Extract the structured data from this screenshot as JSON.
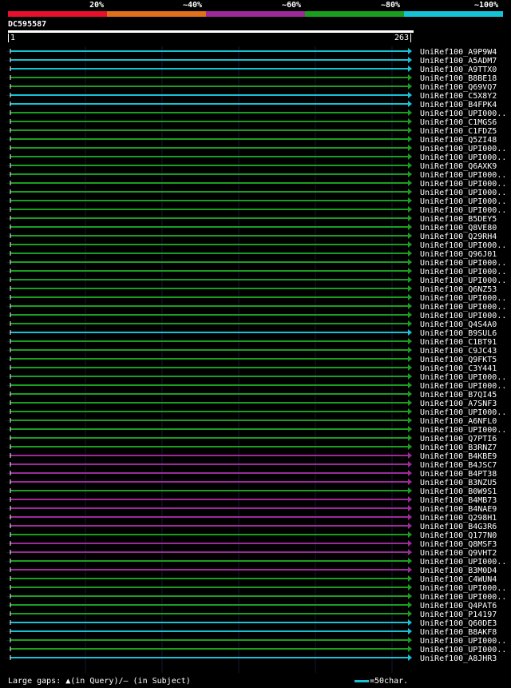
{
  "legend": {
    "labels": [
      "20%",
      "~40%",
      "~60%",
      "~80%",
      "~100%"
    ],
    "colors": [
      "#e8112d",
      "#e0701a",
      "#9c2a98",
      "#1b9e20",
      "#17c2d6"
    ]
  },
  "query": {
    "id": "DC595587",
    "start_label": "1",
    "end_label": "263",
    "length": 263
  },
  "hits": [
    {
      "name": "UniRef100_A9P9W4",
      "color": "#17c2d6"
    },
    {
      "name": "UniRef100_A5ADM7",
      "color": "#17c2d6"
    },
    {
      "name": "UniRef100_A9TTX0",
      "color": "#17c2d6"
    },
    {
      "name": "UniRef100_B8BE18",
      "color": "#1b9e20"
    },
    {
      "name": "UniRef100_Q69VQ7",
      "color": "#1b9e20"
    },
    {
      "name": "UniRef100_C5X8Y2",
      "color": "#17c2d6"
    },
    {
      "name": "UniRef100_B4FPK4",
      "color": "#17c2d6"
    },
    {
      "name": "UniRef100_UPI000..",
      "color": "#1b9e20"
    },
    {
      "name": "UniRef100_C1MGS6",
      "color": "#1b9e20"
    },
    {
      "name": "UniRef100_C1FDZ5",
      "color": "#1b9e20"
    },
    {
      "name": "UniRef100_Q5ZI48",
      "color": "#1b9e20"
    },
    {
      "name": "UniRef100_UPI000..",
      "color": "#1b9e20"
    },
    {
      "name": "UniRef100_UPI000..",
      "color": "#1b9e20"
    },
    {
      "name": "UniRef100_Q6AXK9",
      "color": "#1b9e20"
    },
    {
      "name": "UniRef100_UPI000..",
      "color": "#1b9e20"
    },
    {
      "name": "UniRef100_UPI000..",
      "color": "#1b9e20"
    },
    {
      "name": "UniRef100_UPI000..",
      "color": "#1b9e20"
    },
    {
      "name": "UniRef100_UPI000..",
      "color": "#1b9e20"
    },
    {
      "name": "UniRef100_UPI000..",
      "color": "#1b9e20"
    },
    {
      "name": "UniRef100_B5DEY5",
      "color": "#1b9e20"
    },
    {
      "name": "UniRef100_Q8VE80",
      "color": "#1b9e20"
    },
    {
      "name": "UniRef100_Q29RH4",
      "color": "#1b9e20"
    },
    {
      "name": "UniRef100_UPI000..",
      "color": "#1b9e20"
    },
    {
      "name": "UniRef100_Q96J01",
      "color": "#1b9e20"
    },
    {
      "name": "UniRef100_UPI000..",
      "color": "#1b9e20"
    },
    {
      "name": "UniRef100_UPI000..",
      "color": "#1b9e20"
    },
    {
      "name": "UniRef100_UPI000..",
      "color": "#1b9e20"
    },
    {
      "name": "UniRef100_Q6NZ53",
      "color": "#1b9e20"
    },
    {
      "name": "UniRef100_UPI000..",
      "color": "#1b9e20"
    },
    {
      "name": "UniRef100_UPI000..",
      "color": "#1b9e20"
    },
    {
      "name": "UniRef100_UPI000..",
      "color": "#1b9e20"
    },
    {
      "name": "UniRef100_Q4S4A0",
      "color": "#1b9e20"
    },
    {
      "name": "UniRef100_B9SUL6",
      "color": "#17c2d6"
    },
    {
      "name": "UniRef100_C1BT91",
      "color": "#1b9e20"
    },
    {
      "name": "UniRef100_C9JC43",
      "color": "#1b9e20"
    },
    {
      "name": "UniRef100_Q9FKT5",
      "color": "#1b9e20"
    },
    {
      "name": "UniRef100_C3Y441",
      "color": "#1b9e20"
    },
    {
      "name": "UniRef100_UPI000..",
      "color": "#1b9e20"
    },
    {
      "name": "UniRef100_UPI000..",
      "color": "#1b9e20"
    },
    {
      "name": "UniRef100_B7QI45",
      "color": "#1b9e20"
    },
    {
      "name": "UniRef100_A7SNF3",
      "color": "#1b9e20"
    },
    {
      "name": "UniRef100_UPI000..",
      "color": "#1b9e20"
    },
    {
      "name": "UniRef100_A6NFL0",
      "color": "#1b9e20"
    },
    {
      "name": "UniRef100_UPI000..",
      "color": "#1b9e20"
    },
    {
      "name": "UniRef100_Q7PTI6",
      "color": "#1b9e20"
    },
    {
      "name": "UniRef100_B3RNZ7",
      "color": "#1b9e20"
    },
    {
      "name": "UniRef100_B4KBE9",
      "color": "#9c2a98"
    },
    {
      "name": "UniRef100_B4JSC7",
      "color": "#9c2a98"
    },
    {
      "name": "UniRef100_B4PT38",
      "color": "#9c2a98"
    },
    {
      "name": "UniRef100_B3NZU5",
      "color": "#9c2a98"
    },
    {
      "name": "UniRef100_B0W9S1",
      "color": "#1b9e20"
    },
    {
      "name": "UniRef100_B4MB73",
      "color": "#9c2a98"
    },
    {
      "name": "UniRef100_B4NAE9",
      "color": "#9c2a98"
    },
    {
      "name": "UniRef100_Q298H1",
      "color": "#9c2a98"
    },
    {
      "name": "UniRef100_B4G3R6",
      "color": "#9c2a98"
    },
    {
      "name": "UniRef100_Q177N0",
      "color": "#1b9e20"
    },
    {
      "name": "UniRef100_Q8MSF3",
      "color": "#9c2a98"
    },
    {
      "name": "UniRef100_Q9VHT2",
      "color": "#9c2a98"
    },
    {
      "name": "UniRef100_UPI000..",
      "color": "#1b9e20"
    },
    {
      "name": "UniRef100_B3M0D4",
      "color": "#9c2a98"
    },
    {
      "name": "UniRef100_C4WUN4",
      "color": "#1b9e20"
    },
    {
      "name": "UniRef100_UPI000..",
      "color": "#1b9e20"
    },
    {
      "name": "UniRef100_UPI000..",
      "color": "#1b9e20"
    },
    {
      "name": "UniRef100_Q4PAT6",
      "color": "#1b9e20"
    },
    {
      "name": "UniRef100_P14197",
      "color": "#1b9e20"
    },
    {
      "name": "UniRef100_Q60DE3",
      "color": "#17c2d6"
    },
    {
      "name": "UniRef100_B8AKF8",
      "color": "#17c2d6"
    },
    {
      "name": "UniRef100_UPI000..",
      "color": "#1b9e20"
    },
    {
      "name": "UniRef100_UPI000..",
      "color": "#1b9e20"
    },
    {
      "name": "UniRef100_A8JHR3",
      "color": "#17c2d6"
    }
  ],
  "footer": {
    "gaps_text": "Large gaps: ▲(in Query)/– (in Subject)",
    "scale_text": "=50char."
  }
}
